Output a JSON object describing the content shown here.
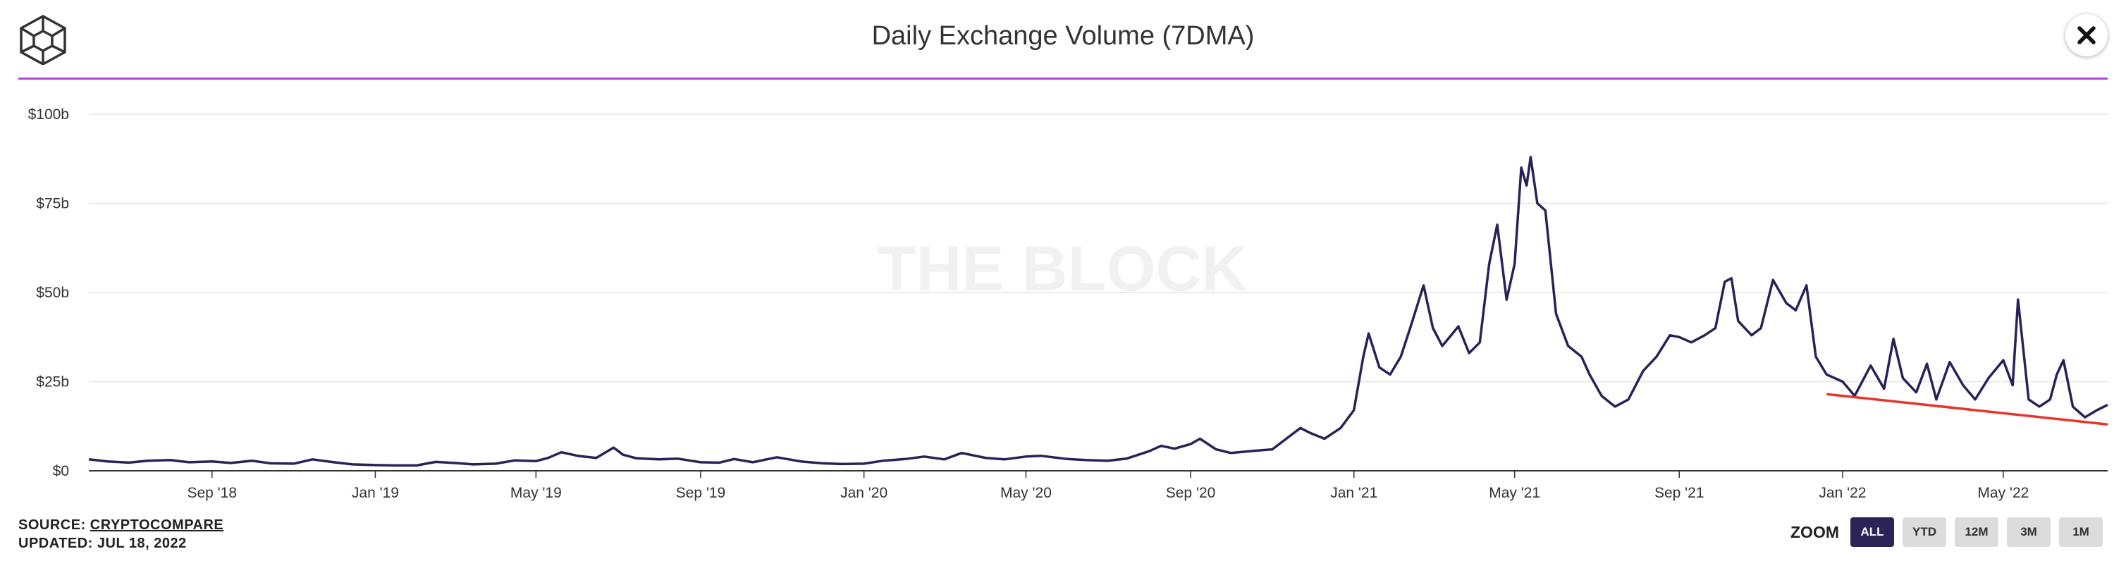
{
  "header": {
    "title": "Daily Exchange Volume (7DMA)",
    "rule_color": "#b147d6"
  },
  "watermark": "THE BLOCK",
  "footer": {
    "source_prefix": "SOURCE: ",
    "source_link": "CRYPTOCOMPARE",
    "updated": "UPDATED: JUL 18, 2022"
  },
  "zoom": {
    "label": "ZOOM",
    "options": [
      "ALL",
      "YTD",
      "12M",
      "3M",
      "1M"
    ],
    "selected": "ALL"
  },
  "icons": {
    "logo": "the-block-cube-logo-icon",
    "close": "close-icon"
  },
  "chart_data": {
    "type": "line",
    "title": "Daily Exchange Volume (7DMA)",
    "x_range": [
      "2018-06-01",
      "2022-07-18"
    ],
    "ylim": [
      0,
      100
    ],
    "y_unit": "billion USD",
    "y_ticks": [
      {
        "value": 0,
        "label": "$0"
      },
      {
        "value": 25,
        "label": "$25b"
      },
      {
        "value": 50,
        "label": "$50b"
      },
      {
        "value": 75,
        "label": "$75b"
      },
      {
        "value": 100,
        "label": "$100b"
      }
    ],
    "x_ticks": [
      {
        "date": "2018-09-01",
        "label": "Sep '18"
      },
      {
        "date": "2019-01-01",
        "label": "Jan '19"
      },
      {
        "date": "2019-05-01",
        "label": "May '19"
      },
      {
        "date": "2019-09-01",
        "label": "Sep '19"
      },
      {
        "date": "2020-01-01",
        "label": "Jan '20"
      },
      {
        "date": "2020-05-01",
        "label": "May '20"
      },
      {
        "date": "2020-09-01",
        "label": "Sep '20"
      },
      {
        "date": "2021-01-01",
        "label": "Jan '21"
      },
      {
        "date": "2021-05-01",
        "label": "May '21"
      },
      {
        "date": "2021-09-01",
        "label": "Sep '21"
      },
      {
        "date": "2022-01-01",
        "label": "Jan '22"
      },
      {
        "date": "2022-05-01",
        "label": "May '22"
      }
    ],
    "grid": true,
    "legend": "none",
    "series": [
      {
        "color": "#2a2157",
        "points": [
          [
            "2018-06-01",
            3.2
          ],
          [
            "2018-06-15",
            2.6
          ],
          [
            "2018-07-01",
            2.3
          ],
          [
            "2018-07-15",
            2.8
          ],
          [
            "2018-08-01",
            3.0
          ],
          [
            "2018-08-15",
            2.4
          ],
          [
            "2018-09-01",
            2.6
          ],
          [
            "2018-09-15",
            2.2
          ],
          [
            "2018-10-01",
            2.8
          ],
          [
            "2018-10-15",
            2.1
          ],
          [
            "2018-11-01",
            2.0
          ],
          [
            "2018-11-15",
            3.2
          ],
          [
            "2018-12-01",
            2.4
          ],
          [
            "2018-12-15",
            1.8
          ],
          [
            "2019-01-01",
            1.6
          ],
          [
            "2019-01-15",
            1.5
          ],
          [
            "2019-02-01",
            1.5
          ],
          [
            "2019-02-15",
            2.5
          ],
          [
            "2019-03-01",
            2.2
          ],
          [
            "2019-03-15",
            1.8
          ],
          [
            "2019-04-01",
            2.0
          ],
          [
            "2019-04-15",
            2.9
          ],
          [
            "2019-05-01",
            2.7
          ],
          [
            "2019-05-10",
            3.6
          ],
          [
            "2019-05-20",
            5.2
          ],
          [
            "2019-06-01",
            4.2
          ],
          [
            "2019-06-15",
            3.6
          ],
          [
            "2019-06-28",
            6.5
          ],
          [
            "2019-07-05",
            4.5
          ],
          [
            "2019-07-15",
            3.5
          ],
          [
            "2019-08-01",
            3.2
          ],
          [
            "2019-08-15",
            3.4
          ],
          [
            "2019-09-01",
            2.4
          ],
          [
            "2019-09-15",
            2.3
          ],
          [
            "2019-09-26",
            3.3
          ],
          [
            "2019-10-10",
            2.4
          ],
          [
            "2019-10-28",
            3.8
          ],
          [
            "2019-11-15",
            2.6
          ],
          [
            "2019-12-01",
            2.1
          ],
          [
            "2019-12-15",
            1.9
          ],
          [
            "2020-01-01",
            2.0
          ],
          [
            "2020-01-15",
            2.8
          ],
          [
            "2020-02-01",
            3.3
          ],
          [
            "2020-02-15",
            4.0
          ],
          [
            "2020-03-01",
            3.2
          ],
          [
            "2020-03-14",
            5.0
          ],
          [
            "2020-04-01",
            3.6
          ],
          [
            "2020-04-15",
            3.2
          ],
          [
            "2020-05-01",
            4.0
          ],
          [
            "2020-05-12",
            4.2
          ],
          [
            "2020-06-01",
            3.3
          ],
          [
            "2020-06-15",
            3.0
          ],
          [
            "2020-07-01",
            2.8
          ],
          [
            "2020-07-15",
            3.4
          ],
          [
            "2020-08-01",
            5.5
          ],
          [
            "2020-08-10",
            7.0
          ],
          [
            "2020-08-20",
            6.2
          ],
          [
            "2020-09-01",
            7.5
          ],
          [
            "2020-09-08",
            9.0
          ],
          [
            "2020-09-20",
            6.0
          ],
          [
            "2020-10-01",
            5.0
          ],
          [
            "2020-10-15",
            5.5
          ],
          [
            "2020-11-01",
            6.0
          ],
          [
            "2020-11-15",
            10.0
          ],
          [
            "2020-11-22",
            12.0
          ],
          [
            "2020-11-30",
            10.5
          ],
          [
            "2020-12-10",
            9.0
          ],
          [
            "2020-12-22",
            12.0
          ],
          [
            "2021-01-01",
            17.0
          ],
          [
            "2021-01-08",
            32.0
          ],
          [
            "2021-01-12",
            38.5
          ],
          [
            "2021-01-20",
            29.0
          ],
          [
            "2021-01-28",
            27.0
          ],
          [
            "2021-02-05",
            32.0
          ],
          [
            "2021-02-12",
            40.0
          ],
          [
            "2021-02-22",
            52.0
          ],
          [
            "2021-03-01",
            40.0
          ],
          [
            "2021-03-08",
            35.0
          ],
          [
            "2021-03-20",
            40.5
          ],
          [
            "2021-03-28",
            33.0
          ],
          [
            "2021-04-05",
            36.0
          ],
          [
            "2021-04-12",
            58.0
          ],
          [
            "2021-04-18",
            69.0
          ],
          [
            "2021-04-25",
            48.0
          ],
          [
            "2021-05-01",
            58.0
          ],
          [
            "2021-05-06",
            85.0
          ],
          [
            "2021-05-10",
            80.0
          ],
          [
            "2021-05-13",
            88.0
          ],
          [
            "2021-05-18",
            75.0
          ],
          [
            "2021-05-24",
            73.0
          ],
          [
            "2021-06-01",
            44.0
          ],
          [
            "2021-06-10",
            35.0
          ],
          [
            "2021-06-20",
            32.0
          ],
          [
            "2021-06-26",
            27.0
          ],
          [
            "2021-07-05",
            21.0
          ],
          [
            "2021-07-15",
            18.0
          ],
          [
            "2021-07-25",
            20.0
          ],
          [
            "2021-08-05",
            28.0
          ],
          [
            "2021-08-15",
            32.0
          ],
          [
            "2021-08-25",
            38.0
          ],
          [
            "2021-09-01",
            37.5
          ],
          [
            "2021-09-10",
            36.0
          ],
          [
            "2021-09-20",
            38.0
          ],
          [
            "2021-09-28",
            40.0
          ],
          [
            "2021-10-05",
            53.0
          ],
          [
            "2021-10-10",
            54.0
          ],
          [
            "2021-10-15",
            42.0
          ],
          [
            "2021-10-25",
            38.0
          ],
          [
            "2021-11-01",
            40.0
          ],
          [
            "2021-11-10",
            53.5
          ],
          [
            "2021-11-20",
            47.0
          ],
          [
            "2021-11-27",
            45.0
          ],
          [
            "2021-12-05",
            52.0
          ],
          [
            "2021-12-12",
            32.0
          ],
          [
            "2021-12-20",
            27.0
          ],
          [
            "2022-01-01",
            25.0
          ],
          [
            "2022-01-10",
            21.0
          ],
          [
            "2022-01-22",
            29.5
          ],
          [
            "2022-02-01",
            23.0
          ],
          [
            "2022-02-08",
            37.0
          ],
          [
            "2022-02-15",
            26.0
          ],
          [
            "2022-02-25",
            22.0
          ],
          [
            "2022-03-05",
            30.0
          ],
          [
            "2022-03-12",
            20.0
          ],
          [
            "2022-03-22",
            30.5
          ],
          [
            "2022-04-01",
            24.0
          ],
          [
            "2022-04-10",
            20.0
          ],
          [
            "2022-04-20",
            26.0
          ],
          [
            "2022-05-01",
            31.0
          ],
          [
            "2022-05-08",
            24.0
          ],
          [
            "2022-05-12",
            48.0
          ],
          [
            "2022-05-20",
            20.0
          ],
          [
            "2022-05-28",
            18.0
          ],
          [
            "2022-06-05",
            20.0
          ],
          [
            "2022-06-10",
            27.0
          ],
          [
            "2022-06-15",
            31.0
          ],
          [
            "2022-06-22",
            18.0
          ],
          [
            "2022-07-01",
            15.0
          ],
          [
            "2022-07-10",
            17.0
          ],
          [
            "2022-07-18",
            18.5
          ]
        ]
      }
    ],
    "annotations": [
      {
        "type": "trendline",
        "color": "#e8352b",
        "from": [
          "2021-12-20",
          21.5
        ],
        "to": [
          "2022-07-18",
          13.0
        ]
      }
    ]
  }
}
